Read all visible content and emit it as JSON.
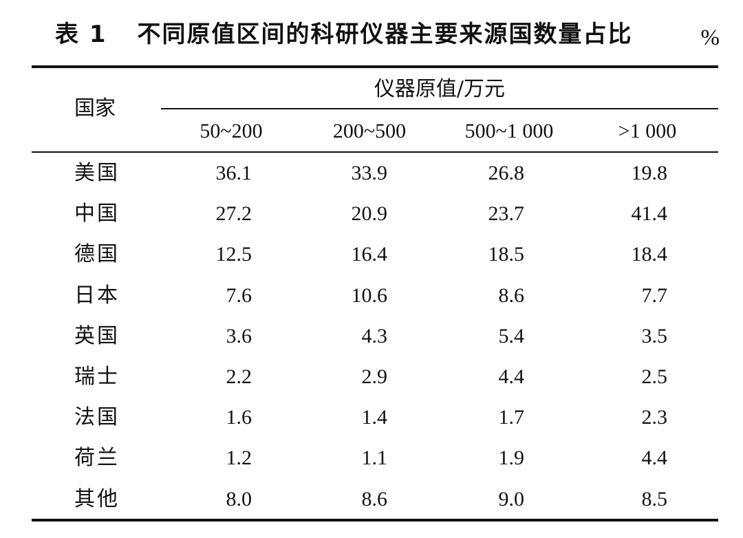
{
  "table": {
    "title_label": "表 1",
    "title_text": "不同原值区间的科研仪器主要来源国数量占比",
    "unit": "%",
    "country_header": "国家",
    "group_header": "仪器原值/万元",
    "columns": [
      "50~200",
      "200~500",
      "500~1 000",
      ">1 000"
    ],
    "rows": [
      {
        "country": "美国",
        "values": [
          "36.1",
          "33.9",
          "26.8",
          "19.8"
        ]
      },
      {
        "country": "中国",
        "values": [
          "27.2",
          "20.9",
          "23.7",
          "41.4"
        ]
      },
      {
        "country": "德国",
        "values": [
          "12.5",
          "16.4",
          "18.5",
          "18.4"
        ]
      },
      {
        "country": "日本",
        "values": [
          "7.6",
          "10.6",
          "8.6",
          "7.7"
        ]
      },
      {
        "country": "英国",
        "values": [
          "3.6",
          "4.3",
          "5.4",
          "3.5"
        ]
      },
      {
        "country": "瑞士",
        "values": [
          "2.2",
          "2.9",
          "4.4",
          "2.5"
        ]
      },
      {
        "country": "法国",
        "values": [
          "1.6",
          "1.4",
          "1.7",
          "2.3"
        ]
      },
      {
        "country": "荷兰",
        "values": [
          "1.2",
          "1.1",
          "1.9",
          "4.4"
        ]
      },
      {
        "country": "其他",
        "values": [
          "8.0",
          "8.6",
          "9.0",
          "8.5"
        ]
      }
    ]
  }
}
